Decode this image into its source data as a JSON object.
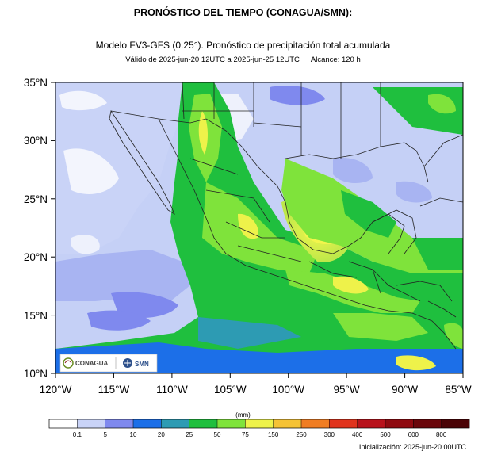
{
  "title": "PRONÓSTICO DEL TIEMPO (CONAGUA/SMN):",
  "subtitle": {
    "line1": "Modelo FV3-GFS (0.25°). Pronóstico de precipitación total acumulada",
    "line2_validity": "Válido de 2025-jun-20 12UTC a 2025-jun-25 12UTC",
    "line2_range": "Alcance: 120 h"
  },
  "map": {
    "lat_labels": [
      "35°N",
      "30°N",
      "25°N",
      "20°N",
      "15°N",
      "10°N"
    ],
    "lon_labels": [
      "120°W",
      "115°W",
      "110°W",
      "105°W",
      "100°W",
      "95°W",
      "90°W",
      "85°W"
    ],
    "lat_range": [
      10,
      35
    ],
    "lon_range": [
      -120,
      -85
    ],
    "logos": {
      "conagua": "CONAGUA",
      "smn": "SMN"
    }
  },
  "legend": {
    "units": "(mm)",
    "thresholds": [
      "0.1",
      "5",
      "10",
      "20",
      "25",
      "50",
      "75",
      "150",
      "250",
      "300",
      "400",
      "500",
      "600",
      "800"
    ],
    "colors": [
      "#ffffff",
      "#c9d3f7",
      "#7f89ee",
      "#1c6fe8",
      "#2d9bb3",
      "#1fbf3e",
      "#7fe33b",
      "#eef24a",
      "#f5c235",
      "#f07d22",
      "#e0331d",
      "#b8121b",
      "#8f0a10",
      "#6a060b",
      "#4a0306"
    ]
  },
  "initialization": "Inicialización: 2025-jun-20 00UTC"
}
